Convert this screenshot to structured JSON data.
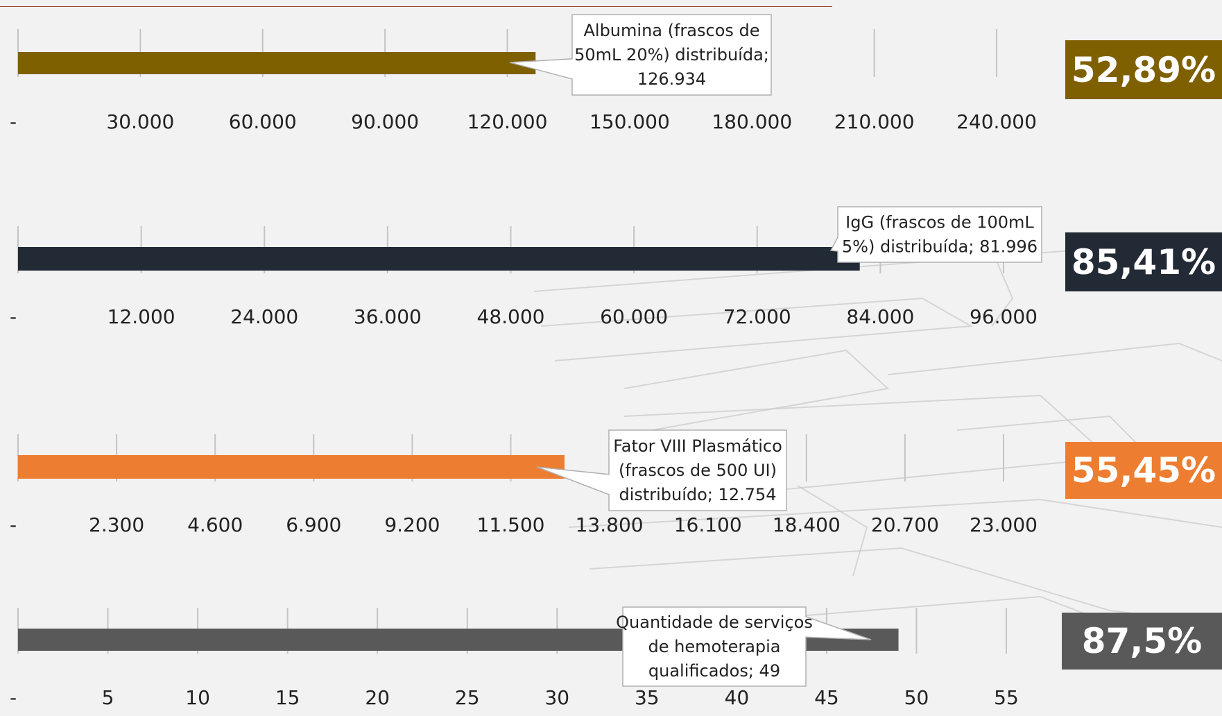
{
  "chart_data": [
    {
      "type": "bar",
      "category": "Albumina (frascos de 50mL 20%) distribuída",
      "value": 126934,
      "value_label": "126.934",
      "callout_lines": [
        "Albumina (frascos de",
        "50mL 20%) distribuída;",
        "126.934"
      ],
      "xlim": [
        0,
        240000
      ],
      "ticks": [
        0,
        30000,
        60000,
        90000,
        120000,
        150000,
        180000,
        210000,
        240000
      ],
      "tick_labels": [
        "-",
        "30.000",
        "60.000",
        "90.000",
        "120.000",
        "150.000",
        "180.000",
        "210.000",
        "240.000"
      ],
      "color": "#7f6000",
      "percent": "52,89%"
    },
    {
      "type": "bar",
      "category": "IgG (frascos de 100mL 5%) distribuída",
      "value": 81996,
      "value_label": "81.996",
      "callout_lines": [
        "IgG (frascos de 100mL",
        "5%) distribuída;  81.996"
      ],
      "xlim": [
        0,
        96000
      ],
      "ticks": [
        0,
        12000,
        24000,
        36000,
        48000,
        60000,
        72000,
        84000,
        96000
      ],
      "tick_labels": [
        "-",
        "12.000",
        "24.000",
        "36.000",
        "48.000",
        "60.000",
        "72.000",
        "84.000",
        "96.000"
      ],
      "color": "#222a35",
      "percent": "85,41%"
    },
    {
      "type": "bar",
      "category": "Fator VIII Plasmático (frascos de 500 UI) distribuído",
      "value": 12754,
      "value_label": "12.754",
      "callout_lines": [
        "Fator VIII Plasmático",
        "(frascos de 500 UI)",
        "distribuído;  12.754"
      ],
      "xlim": [
        0,
        23000
      ],
      "ticks": [
        0,
        2300,
        4600,
        6900,
        9200,
        11500,
        13800,
        16100,
        18400,
        20700,
        23000
      ],
      "tick_labels": [
        "-",
        "2.300",
        "4.600",
        "6.900",
        "9.200",
        "11.500",
        "13.800",
        "16.100",
        "18.400",
        "20.700",
        "23.000"
      ],
      "color": "#ed7d31",
      "percent": "55,45%"
    },
    {
      "type": "bar",
      "category": "Quantidade de serviços de hemoterapia qualificados",
      "value": 49,
      "value_label": "49",
      "callout_lines": [
        "Quantidade de serviços",
        "de hemoterapia",
        "qualificados;  49"
      ],
      "xlim": [
        0,
        55
      ],
      "ticks": [
        0,
        5,
        10,
        15,
        20,
        25,
        30,
        35,
        40,
        45,
        50,
        55
      ],
      "tick_labels": [
        "-",
        "5",
        "10",
        "15",
        "20",
        "25",
        "30",
        "35",
        "40",
        "45",
        "50",
        "55"
      ],
      "color": "#595959",
      "percent": "87,5%"
    }
  ]
}
